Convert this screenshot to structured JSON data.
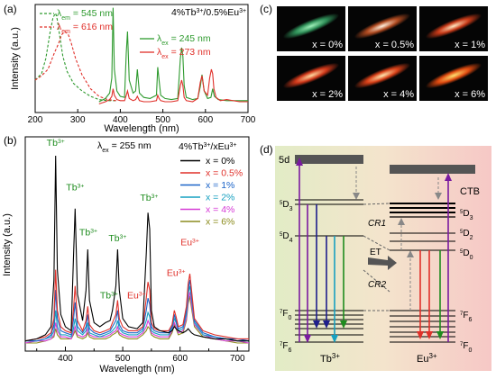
{
  "panel_labels": {
    "a": "(a)",
    "b": "(b)",
    "c": "(c)",
    "d": "(d)"
  },
  "chart_data": [
    {
      "id": "a",
      "type": "line",
      "title": "4%Tb3+/0.5%Eu3+",
      "xlabel": "Wavelength (nm)",
      "ylabel": "Intensity (a.u.)",
      "xlim": [
        200,
        700
      ],
      "xticks": [
        200,
        300,
        400,
        500,
        600,
        700
      ],
      "ylim": [
        0,
        1
      ],
      "legend": [
        {
          "name": "λem = 545 nm",
          "color": "#2e9a2e",
          "dash": true
        },
        {
          "name": "λem = 616 nm",
          "color": "#e0302a",
          "dash": true
        },
        {
          "name": "λex = 245 nm",
          "color": "#2e9a2e",
          "dash": false
        },
        {
          "name": "λex = 273 nm",
          "color": "#e0302a",
          "dash": false
        }
      ],
      "series": [
        {
          "name": "λem = 545 nm",
          "color": "#2e9a2e",
          "dash": true,
          "x": [
            200,
            215,
            225,
            235,
            242,
            248,
            252,
            258,
            265,
            275,
            290,
            310,
            330,
            350,
            370,
            390
          ],
          "y": [
            0.3,
            0.36,
            0.5,
            0.74,
            0.88,
            0.92,
            0.86,
            0.7,
            0.52,
            0.38,
            0.27,
            0.2,
            0.15,
            0.12,
            0.11,
            0.11
          ]
        },
        {
          "name": "λem = 616 nm",
          "color": "#e0302a",
          "dash": true,
          "x": [
            200,
            215,
            230,
            245,
            255,
            262,
            270,
            278,
            285,
            295,
            310,
            330,
            350,
            370,
            390
          ],
          "y": [
            0.3,
            0.34,
            0.4,
            0.55,
            0.64,
            0.72,
            0.75,
            0.72,
            0.64,
            0.5,
            0.35,
            0.22,
            0.15,
            0.12,
            0.11
          ]
        },
        {
          "name": "λex = 245 nm",
          "color": "#2e9a2e",
          "dash": false,
          "x": [
            350,
            365,
            375,
            380,
            383,
            386,
            392,
            400,
            410,
            414,
            417,
            421,
            430,
            436,
            440,
            445,
            455,
            470,
            485,
            488,
            491,
            495,
            505,
            520,
            535,
            541,
            544,
            547,
            550,
            555,
            570,
            582,
            588,
            592,
            597,
            605,
            613,
            617,
            621,
            630,
            650,
            680,
            700
          ],
          "y": [
            0.1,
            0.13,
            0.18,
            0.32,
            0.97,
            0.4,
            0.2,
            0.15,
            0.14,
            0.55,
            0.75,
            0.3,
            0.18,
            0.2,
            0.4,
            0.18,
            0.14,
            0.13,
            0.16,
            0.42,
            0.3,
            0.16,
            0.13,
            0.12,
            0.13,
            0.5,
            0.6,
            0.52,
            0.25,
            0.14,
            0.12,
            0.13,
            0.24,
            0.35,
            0.2,
            0.13,
            0.14,
            0.22,
            0.15,
            0.12,
            0.11,
            0.11,
            0.11
          ]
        },
        {
          "name": "λex = 273 nm",
          "color": "#e0302a",
          "dash": false,
          "x": [
            350,
            365,
            375,
            380,
            383,
            386,
            392,
            400,
            410,
            414,
            417,
            421,
            430,
            436,
            440,
            445,
            455,
            470,
            485,
            488,
            491,
            495,
            505,
            520,
            535,
            541,
            544,
            547,
            550,
            555,
            570,
            582,
            588,
            592,
            597,
            605,
            610,
            614,
            617,
            620,
            625,
            635,
            650,
            680,
            700
          ],
          "y": [
            0.08,
            0.1,
            0.12,
            0.15,
            0.22,
            0.16,
            0.12,
            0.11,
            0.11,
            0.16,
            0.2,
            0.13,
            0.11,
            0.12,
            0.15,
            0.11,
            0.1,
            0.1,
            0.11,
            0.16,
            0.13,
            0.11,
            0.1,
            0.1,
            0.11,
            0.25,
            0.3,
            0.25,
            0.14,
            0.11,
            0.1,
            0.13,
            0.28,
            0.34,
            0.2,
            0.16,
            0.32,
            0.4,
            0.36,
            0.22,
            0.14,
            0.11,
            0.12,
            0.1,
            0.1
          ]
        }
      ]
    },
    {
      "id": "b",
      "type": "line",
      "title": "4%Tb3+/xEu3+",
      "excitation": "λex = 255 nm",
      "xlabel": "Wavelength (nm)",
      "ylabel": "Intensity (a.u.)",
      "xlim": [
        330,
        720
      ],
      "xticks": [
        400,
        500,
        600,
        700
      ],
      "xminor": [
        350,
        450,
        550,
        650
      ],
      "ylim": [
        0,
        1
      ],
      "x": [
        330,
        350,
        365,
        375,
        380,
        383,
        386,
        392,
        400,
        410,
        414,
        417,
        421,
        430,
        436,
        439,
        442,
        450,
        460,
        470,
        478,
        482,
        488,
        491,
        494,
        500,
        510,
        525,
        535,
        541,
        544,
        547,
        550,
        555,
        565,
        580,
        586,
        590,
        593,
        597,
        605,
        611,
        614,
        617,
        620,
        625,
        640,
        660,
        680,
        700,
        720
      ],
      "series": [
        {
          "name": "x = 0%",
          "color": "#000000",
          "y": [
            0.05,
            0.06,
            0.08,
            0.12,
            0.35,
            0.96,
            0.4,
            0.18,
            0.12,
            0.1,
            0.45,
            0.7,
            0.28,
            0.15,
            0.3,
            0.5,
            0.25,
            0.14,
            0.12,
            0.14,
            0.15,
            0.2,
            0.32,
            0.5,
            0.3,
            0.16,
            0.12,
            0.11,
            0.14,
            0.48,
            0.68,
            0.6,
            0.2,
            0.12,
            0.1,
            0.09,
            0.1,
            0.12,
            0.11,
            0.1,
            0.09,
            0.1,
            0.11,
            0.1,
            0.09,
            0.08,
            0.07,
            0.06,
            0.06,
            0.05,
            0.05
          ]
        },
        {
          "name": "x = 0.5%",
          "color": "#e0302a",
          "y": [
            0.05,
            0.06,
            0.07,
            0.09,
            0.16,
            0.4,
            0.2,
            0.12,
            0.1,
            0.09,
            0.2,
            0.32,
            0.15,
            0.1,
            0.15,
            0.22,
            0.13,
            0.1,
            0.09,
            0.1,
            0.11,
            0.14,
            0.18,
            0.25,
            0.16,
            0.12,
            0.1,
            0.1,
            0.12,
            0.26,
            0.34,
            0.3,
            0.14,
            0.11,
            0.1,
            0.1,
            0.13,
            0.2,
            0.17,
            0.12,
            0.13,
            0.22,
            0.33,
            0.38,
            0.3,
            0.16,
            0.1,
            0.08,
            0.07,
            0.06,
            0.06
          ]
        },
        {
          "name": "x = 1%",
          "color": "#1b64c8",
          "y": [
            0.05,
            0.05,
            0.06,
            0.08,
            0.13,
            0.3,
            0.16,
            0.1,
            0.09,
            0.08,
            0.15,
            0.24,
            0.12,
            0.09,
            0.12,
            0.18,
            0.11,
            0.09,
            0.08,
            0.09,
            0.1,
            0.12,
            0.15,
            0.2,
            0.13,
            0.1,
            0.09,
            0.09,
            0.11,
            0.2,
            0.26,
            0.23,
            0.12,
            0.1,
            0.09,
            0.09,
            0.12,
            0.18,
            0.15,
            0.11,
            0.12,
            0.2,
            0.3,
            0.35,
            0.28,
            0.15,
            0.09,
            0.07,
            0.06,
            0.06,
            0.05
          ]
        },
        {
          "name": "x = 2%",
          "color": "#16a0c0",
          "y": [
            0.05,
            0.05,
            0.06,
            0.07,
            0.1,
            0.2,
            0.12,
            0.08,
            0.08,
            0.07,
            0.11,
            0.16,
            0.1,
            0.08,
            0.1,
            0.14,
            0.09,
            0.08,
            0.07,
            0.08,
            0.09,
            0.1,
            0.12,
            0.15,
            0.11,
            0.09,
            0.08,
            0.08,
            0.1,
            0.15,
            0.19,
            0.17,
            0.1,
            0.09,
            0.08,
            0.08,
            0.11,
            0.16,
            0.14,
            0.1,
            0.11,
            0.18,
            0.28,
            0.32,
            0.26,
            0.14,
            0.08,
            0.07,
            0.06,
            0.05,
            0.05
          ]
        },
        {
          "name": "x = 4%",
          "color": "#d63cd6",
          "y": [
            0.04,
            0.05,
            0.05,
            0.06,
            0.08,
            0.14,
            0.1,
            0.07,
            0.07,
            0.06,
            0.09,
            0.12,
            0.08,
            0.07,
            0.08,
            0.11,
            0.08,
            0.07,
            0.07,
            0.07,
            0.08,
            0.09,
            0.1,
            0.12,
            0.09,
            0.08,
            0.07,
            0.07,
            0.09,
            0.12,
            0.15,
            0.13,
            0.09,
            0.08,
            0.07,
            0.07,
            0.1,
            0.14,
            0.12,
            0.09,
            0.1,
            0.16,
            0.25,
            0.29,
            0.23,
            0.13,
            0.08,
            0.06,
            0.05,
            0.05,
            0.04
          ]
        },
        {
          "name": "x = 6%",
          "color": "#8c8c1e",
          "y": [
            0.04,
            0.04,
            0.05,
            0.06,
            0.07,
            0.11,
            0.08,
            0.06,
            0.06,
            0.06,
            0.08,
            0.1,
            0.07,
            0.06,
            0.07,
            0.09,
            0.07,
            0.06,
            0.06,
            0.06,
            0.07,
            0.08,
            0.09,
            0.1,
            0.08,
            0.07,
            0.06,
            0.06,
            0.08,
            0.1,
            0.12,
            0.11,
            0.08,
            0.07,
            0.06,
            0.06,
            0.09,
            0.13,
            0.11,
            0.08,
            0.09,
            0.15,
            0.23,
            0.27,
            0.21,
            0.12,
            0.07,
            0.06,
            0.05,
            0.04,
            0.04
          ]
        }
      ],
      "annotations": [
        {
          "text": "Tb3+",
          "color": "#1e8c1e",
          "x": 383,
          "y": 1.0
        },
        {
          "text": "Tb3+",
          "color": "#1e8c1e",
          "x": 417,
          "y": 0.78
        },
        {
          "text": "Tb3+",
          "color": "#1e8c1e",
          "x": 440,
          "y": 0.56
        },
        {
          "text": "Tb3+",
          "color": "#1e8c1e",
          "x": 491,
          "y": 0.53
        },
        {
          "text": "Tb3+",
          "color": "#1e8c1e",
          "x": 546,
          "y": 0.73
        },
        {
          "text": "Tb3+",
          "color": "#1e8c1e",
          "x": 476,
          "y": 0.25
        },
        {
          "text": "Eu3+",
          "color": "#e0302a",
          "x": 524,
          "y": 0.25
        },
        {
          "text": "Eu3+",
          "color": "#e0302a",
          "x": 593,
          "y": 0.36
        },
        {
          "text": "Eu3+",
          "color": "#e0302a",
          "x": 617,
          "y": 0.51
        }
      ]
    }
  ],
  "panel_c": {
    "images": [
      {
        "label": "x = 0%",
        "core": "#9ef0b8",
        "edge": "#2f8f58"
      },
      {
        "label": "x = 0.5%",
        "core": "#fff0dd",
        "edge": "#b04a20"
      },
      {
        "label": "x = 1%",
        "core": "#ffe6c0",
        "edge": "#c83a18"
      },
      {
        "label": "x = 2%",
        "core": "#ffd9a0",
        "edge": "#d0381a"
      },
      {
        "label": "x = 4%",
        "core": "#ffe8b0",
        "edge": "#d84018"
      },
      {
        "label": "x = 6%",
        "core": "#ffe070",
        "edge": "#e04a10"
      }
    ]
  },
  "panel_d": {
    "tb_label": "Tb3+",
    "eu_label": "Eu3+",
    "level_5d": "5d",
    "level_ctb": "CTB",
    "tb_levels": [
      "5D3",
      "5D4",
      "7F0",
      "7F6"
    ],
    "eu_levels": [
      "5D3",
      "5D2",
      "5D0",
      "7F6",
      "7F0"
    ],
    "transfer_labels": [
      "CR1",
      "ET",
      "CR2"
    ],
    "colors": {
      "tb_green": "#1e8c1e",
      "eu_red": "#e0302a",
      "violet": "#7a1aa0"
    }
  }
}
